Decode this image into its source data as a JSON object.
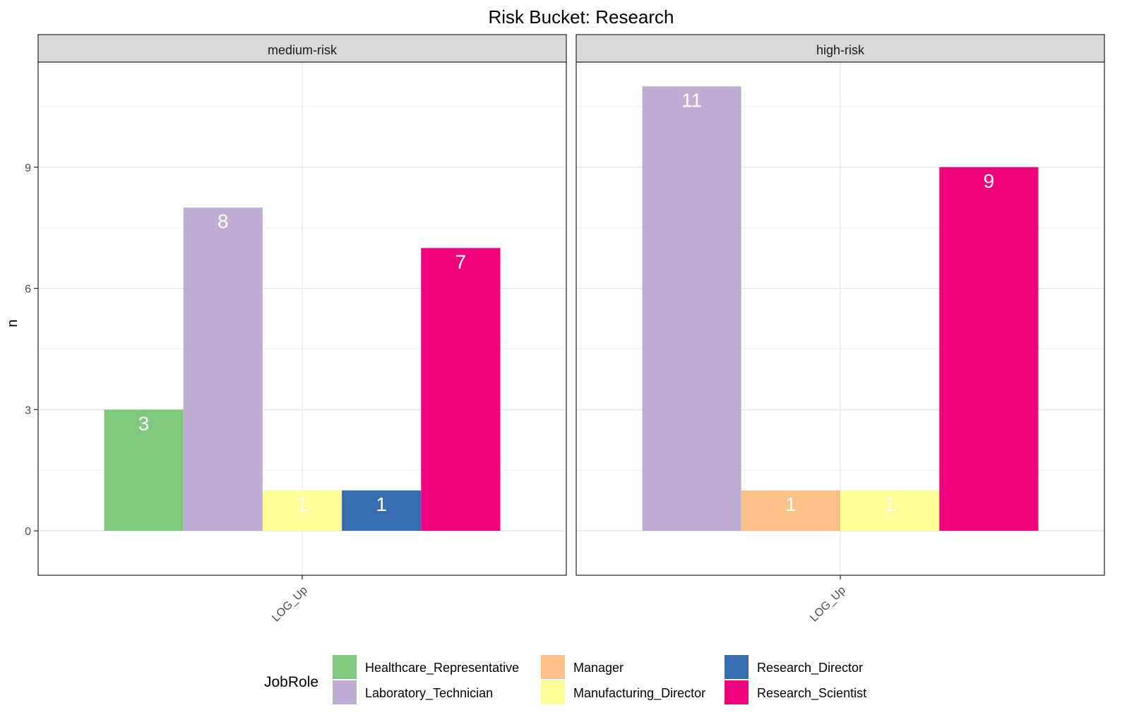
{
  "chart_data": {
    "type": "bar",
    "title": "Risk Bucket: Research",
    "ylabel": "n",
    "xlabel": "",
    "ylim": [
      -1.1,
      11.6
    ],
    "y_ticks": [
      0,
      3,
      6,
      9
    ],
    "grid": true,
    "legend": {
      "title": "JobRole",
      "position": "bottom",
      "entries": [
        {
          "name": "Healthcare_Representative",
          "color": "#7fc97f"
        },
        {
          "name": "Laboratory_Technician",
          "color": "#beaed4"
        },
        {
          "name": "Manager",
          "color": "#fdc086"
        },
        {
          "name": "Manufacturing_Director",
          "color": "#ffff99"
        },
        {
          "name": "Research_Director",
          "color": "#386cb0"
        },
        {
          "name": "Research_Scientist",
          "color": "#f0027f"
        }
      ]
    },
    "facets": [
      {
        "name": "medium-risk",
        "category": "LOG_Up",
        "bars": [
          {
            "series": "Healthcare_Representative",
            "value": 3
          },
          {
            "series": "Laboratory_Technician",
            "value": 8
          },
          {
            "series": "Manufacturing_Director",
            "value": 1
          },
          {
            "series": "Research_Director",
            "value": 1
          },
          {
            "series": "Research_Scientist",
            "value": 7
          }
        ]
      },
      {
        "name": "high-risk",
        "category": "LOG_Up",
        "bars": [
          {
            "series": "Laboratory_Technician",
            "value": 11
          },
          {
            "series": "Manager",
            "value": 1
          },
          {
            "series": "Manufacturing_Director",
            "value": 1
          },
          {
            "series": "Research_Scientist",
            "value": 9
          }
        ]
      }
    ]
  }
}
